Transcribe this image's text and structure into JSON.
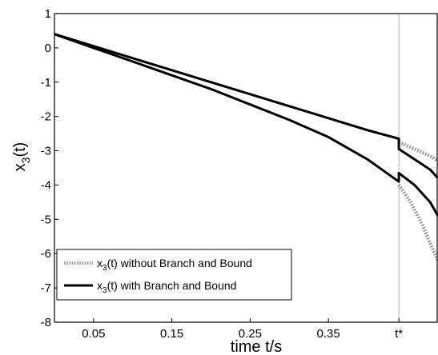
{
  "chart_data": {
    "type": "line",
    "xlabel": "time t/s",
    "ylabel_main": "x",
    "ylabel_sub": "3",
    "ylabel_tail": "(t)",
    "xlim": [
      0,
      0.49
    ],
    "ylim": [
      -8,
      1
    ],
    "x_ticks": [
      {
        "value": 0.05,
        "label": "0.05"
      },
      {
        "value": 0.15,
        "label": "0.15"
      },
      {
        "value": 0.25,
        "label": "0.25"
      },
      {
        "value": 0.35,
        "label": "0.35"
      },
      {
        "value": 0.44,
        "label": "t*"
      }
    ],
    "y_ticks": [
      {
        "value": 1,
        "label": "1"
      },
      {
        "value": 0,
        "label": "0"
      },
      {
        "value": -1,
        "label": "-1"
      },
      {
        "value": -2,
        "label": "-2"
      },
      {
        "value": -3,
        "label": "-3"
      },
      {
        "value": -4,
        "label": "-4"
      },
      {
        "value": -5,
        "label": "-5"
      },
      {
        "value": -6,
        "label": "-6"
      },
      {
        "value": -7,
        "label": "-7"
      },
      {
        "value": -8,
        "label": "-8"
      }
    ],
    "t_star": 0.44,
    "series": [
      {
        "name_main": "x",
        "name_sub": "3",
        "name_tail": "(t) without Branch and Bound",
        "style": "dotted",
        "color": "#9a9a9a",
        "lines": [
          {
            "x": [
              0.44,
              0.46,
              0.48,
              0.49
            ],
            "y": [
              -2.75,
              -2.95,
              -3.15,
              -3.3
            ]
          },
          {
            "x": [
              0.44,
              0.455,
              0.47,
              0.48,
              0.49
            ],
            "y": [
              -4.0,
              -4.5,
              -5.15,
              -5.7,
              -6.2
            ]
          }
        ]
      },
      {
        "name_main": "x",
        "name_sub": "3",
        "name_tail": "(t) with Branch and Bound",
        "style": "solid",
        "color": "#000000",
        "lines": [
          {
            "x": [
              0.0,
              0.05,
              0.1,
              0.15,
              0.2,
              0.25,
              0.3,
              0.35,
              0.4,
              0.44,
              0.44,
              0.46,
              0.48,
              0.49
            ],
            "y": [
              0.4,
              0.05,
              -0.3,
              -0.65,
              -1.0,
              -1.35,
              -1.7,
              -2.05,
              -2.4,
              -2.65,
              -2.95,
              -3.25,
              -3.55,
              -3.8
            ]
          },
          {
            "x": [
              0.0,
              0.05,
              0.1,
              0.15,
              0.2,
              0.25,
              0.3,
              0.35,
              0.4,
              0.44,
              0.44,
              0.46,
              0.48,
              0.49
            ],
            "y": [
              0.4,
              0.0,
              -0.4,
              -0.8,
              -1.2,
              -1.65,
              -2.1,
              -2.6,
              -3.25,
              -3.9,
              -3.65,
              -4.0,
              -4.5,
              -4.9
            ]
          }
        ]
      }
    ]
  }
}
